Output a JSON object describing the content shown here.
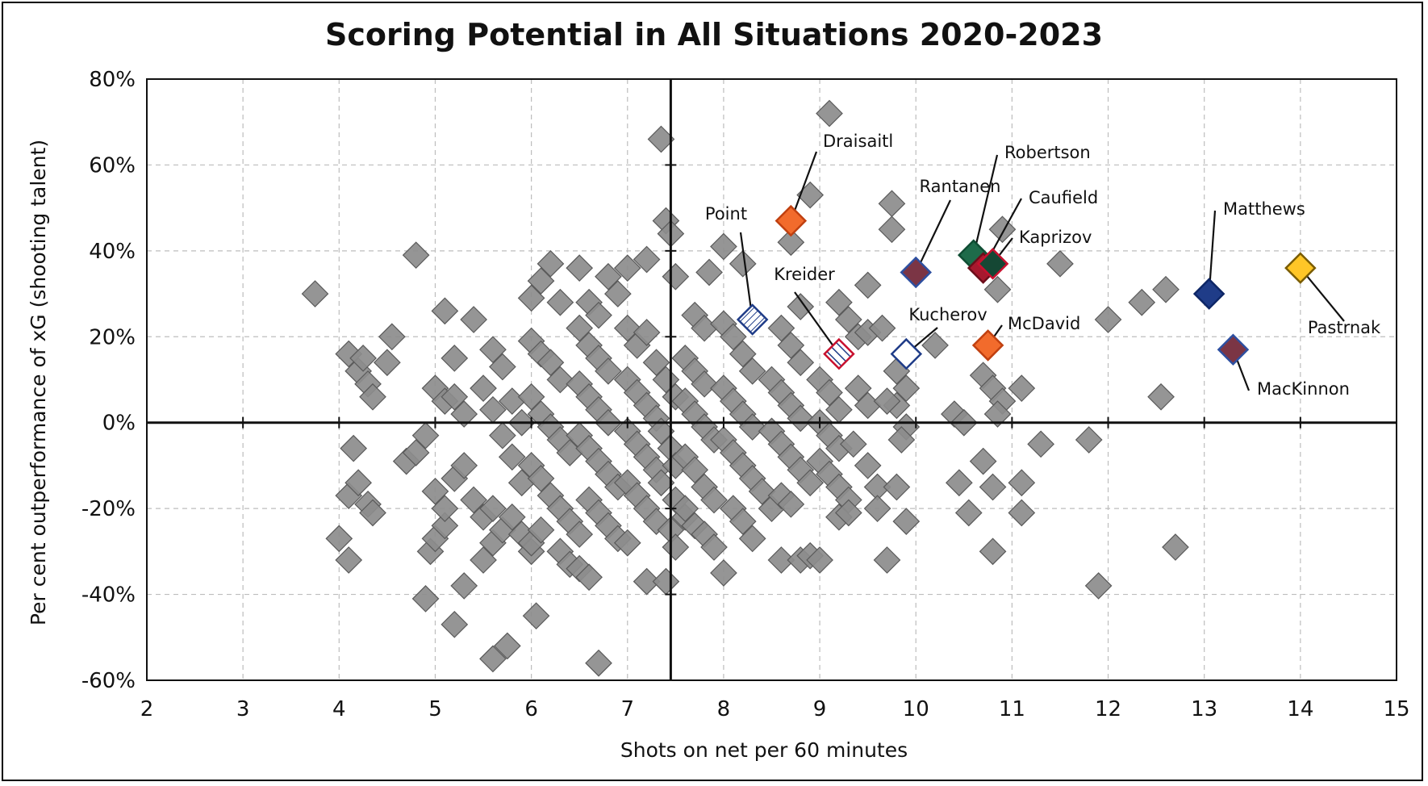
{
  "chart_data": {
    "type": "scatter",
    "title": "Scoring Potential in All Situations 2020-2023",
    "xlabel": "Shots on net per 60 minutes",
    "ylabel": "Per cent outperformance of xG (shooting talent)",
    "xlim": [
      2,
      15
    ],
    "ylim": [
      -60,
      80
    ],
    "xticks": [
      "2",
      "3",
      "4",
      "5",
      "6",
      "7",
      "8",
      "9",
      "10",
      "11",
      "12",
      "13",
      "14",
      "15"
    ],
    "yticks": [
      "80%",
      "60%",
      "40%",
      "20%",
      "0%",
      "-20%",
      "-40%",
      "-60%"
    ],
    "grid": true,
    "crosshair": {
      "x": 7.45,
      "y": 0
    },
    "colors": {
      "default_fill": "#8c8c8c",
      "default_stroke": "#5a5a5a"
    },
    "highlighted": [
      {
        "name": "Draisaitl",
        "x": 8.7,
        "y": 47,
        "fill": "#f26b2c",
        "stroke": "#c04010"
      },
      {
        "name": "Point",
        "x": 8.3,
        "y": 24,
        "fill": "#ffffff",
        "stroke": "#1f3c88",
        "pattern": "hatch"
      },
      {
        "name": "Kreider",
        "x": 9.2,
        "y": 16,
        "fill": "#ffffff",
        "stroke": "#c8102e",
        "pattern": "stripes"
      },
      {
        "name": "Rantanen",
        "x": 10.0,
        "y": 35,
        "fill": "#7b3545",
        "stroke": "#2d4fa0"
      },
      {
        "name": "Robertson",
        "x": 10.6,
        "y": 39,
        "fill": "#1e6b4a",
        "stroke": "#0f4d33"
      },
      {
        "name": "Caufield",
        "x": 10.7,
        "y": 36,
        "fill": "#a6192e",
        "stroke": "#6b0d1a"
      },
      {
        "name": "Kaprizov",
        "x": 10.8,
        "y": 37,
        "fill": "#154734",
        "stroke": "#c8102e"
      },
      {
        "name": "Kucherov",
        "x": 9.9,
        "y": 16,
        "fill": "#ffffff",
        "stroke": "#1f3c88"
      },
      {
        "name": "McDavid",
        "x": 10.75,
        "y": 18,
        "fill": "#f26b2c",
        "stroke": "#c04010"
      },
      {
        "name": "Matthews",
        "x": 13.05,
        "y": 30,
        "fill": "#1f3c88",
        "stroke": "#0d2666"
      },
      {
        "name": "Pastrnak",
        "x": 14.0,
        "y": 36,
        "fill": "#ffc627",
        "stroke": "#7a5c00"
      },
      {
        "name": "MacKinnon",
        "x": 13.3,
        "y": 17,
        "fill": "#7b3545",
        "stroke": "#2d4fa0"
      }
    ],
    "points": [
      [
        3.75,
        30
      ],
      [
        4.8,
        39
      ],
      [
        4.1,
        16
      ],
      [
        4.2,
        12
      ],
      [
        4.3,
        9
      ],
      [
        4.35,
        6
      ],
      [
        4.5,
        14
      ],
      [
        4.55,
        20
      ],
      [
        4.25,
        15
      ],
      [
        4.15,
        -6
      ],
      [
        4.1,
        -17
      ],
      [
        4.2,
        -14
      ],
      [
        4.3,
        -19
      ],
      [
        4.35,
        -21
      ],
      [
        4.0,
        -27
      ],
      [
        4.1,
        -32
      ],
      [
        4.7,
        -9
      ],
      [
        4.8,
        -7
      ],
      [
        4.9,
        -3
      ],
      [
        4.9,
        -41
      ],
      [
        4.95,
        -30
      ],
      [
        5.0,
        -27
      ],
      [
        5.1,
        -24
      ],
      [
        5.2,
        -47
      ],
      [
        5.3,
        -38
      ],
      [
        5.1,
        26
      ],
      [
        5.2,
        15
      ],
      [
        5.4,
        24
      ],
      [
        5.0,
        8
      ],
      [
        5.1,
        5
      ],
      [
        5.2,
        6
      ],
      [
        5.3,
        2
      ],
      [
        5.0,
        -16
      ],
      [
        5.1,
        -20
      ],
      [
        5.2,
        -13
      ],
      [
        5.3,
        -10
      ],
      [
        5.4,
        -18
      ],
      [
        5.5,
        -22
      ],
      [
        5.6,
        -28
      ],
      [
        5.7,
        -25
      ],
      [
        5.5,
        -32
      ],
      [
        5.6,
        -55
      ],
      [
        5.75,
        -52
      ],
      [
        5.6,
        17
      ],
      [
        5.7,
        13
      ],
      [
        5.5,
        8
      ],
      [
        5.8,
        5
      ],
      [
        5.9,
        0
      ],
      [
        5.6,
        3
      ],
      [
        5.7,
        -3
      ],
      [
        5.8,
        -8
      ],
      [
        5.9,
        -14
      ],
      [
        5.6,
        -20
      ],
      [
        5.8,
        -22
      ],
      [
        5.9,
        -26
      ],
      [
        6.0,
        -30
      ],
      [
        6.05,
        -45
      ],
      [
        6.0,
        -28
      ],
      [
        6.1,
        -25
      ],
      [
        6.0,
        29
      ],
      [
        6.2,
        37
      ],
      [
        6.5,
        36
      ],
      [
        6.1,
        33
      ],
      [
        6.3,
        28
      ],
      [
        6.0,
        19
      ],
      [
        6.1,
        16
      ],
      [
        6.2,
        14
      ],
      [
        6.3,
        10
      ],
      [
        6.0,
        6
      ],
      [
        6.1,
        2
      ],
      [
        6.2,
        -1
      ],
      [
        6.3,
        -4
      ],
      [
        6.4,
        -7
      ],
      [
        6.0,
        -10
      ],
      [
        6.1,
        -13
      ],
      [
        6.2,
        -17
      ],
      [
        6.3,
        -20
      ],
      [
        6.4,
        -23
      ],
      [
        6.5,
        -26
      ],
      [
        6.3,
        -30
      ],
      [
        6.4,
        -33
      ],
      [
        6.5,
        -34
      ],
      [
        6.6,
        -36
      ],
      [
        6.7,
        -56
      ],
      [
        6.6,
        28
      ],
      [
        6.7,
        25
      ],
      [
        6.5,
        22
      ],
      [
        6.6,
        18
      ],
      [
        6.7,
        15
      ],
      [
        6.8,
        12
      ],
      [
        6.5,
        9
      ],
      [
        6.6,
        6
      ],
      [
        6.7,
        3
      ],
      [
        6.8,
        0
      ],
      [
        6.5,
        -3
      ],
      [
        6.6,
        -6
      ],
      [
        6.7,
        -9
      ],
      [
        6.8,
        -12
      ],
      [
        6.9,
        -15
      ],
      [
        6.6,
        -18
      ],
      [
        6.7,
        -21
      ],
      [
        6.8,
        -24
      ],
      [
        6.9,
        -27
      ],
      [
        6.8,
        34
      ],
      [
        6.9,
        30
      ],
      [
        7.0,
        36
      ],
      [
        7.2,
        38
      ],
      [
        7.0,
        22
      ],
      [
        7.1,
        18
      ],
      [
        7.2,
        21
      ],
      [
        7.0,
        10
      ],
      [
        7.1,
        7
      ],
      [
        7.2,
        4
      ],
      [
        7.3,
        1
      ],
      [
        7.0,
        -2
      ],
      [
        7.1,
        -5
      ],
      [
        7.2,
        -8
      ],
      [
        7.3,
        -11
      ],
      [
        7.0,
        -14
      ],
      [
        7.1,
        -17
      ],
      [
        7.2,
        -20
      ],
      [
        7.3,
        -23
      ],
      [
        7.0,
        -28
      ],
      [
        7.2,
        -37
      ],
      [
        7.4,
        -37
      ],
      [
        7.35,
        66
      ],
      [
        7.4,
        47
      ],
      [
        7.45,
        44
      ],
      [
        7.3,
        14
      ],
      [
        7.4,
        10
      ],
      [
        7.5,
        6
      ],
      [
        7.35,
        -2
      ],
      [
        7.45,
        -6
      ],
      [
        7.5,
        -10
      ],
      [
        7.35,
        -14
      ],
      [
        7.5,
        -18
      ],
      [
        7.45,
        -25
      ],
      [
        7.5,
        -29
      ],
      [
        7.6,
        -22
      ],
      [
        7.5,
        34
      ],
      [
        7.7,
        25
      ],
      [
        7.8,
        22
      ],
      [
        7.6,
        15
      ],
      [
        7.7,
        12
      ],
      [
        7.8,
        9
      ],
      [
        7.6,
        5
      ],
      [
        7.7,
        2
      ],
      [
        7.8,
        -1
      ],
      [
        7.9,
        -4
      ],
      [
        7.6,
        -8
      ],
      [
        7.7,
        -11
      ],
      [
        7.8,
        -15
      ],
      [
        7.9,
        -18
      ],
      [
        7.6,
        -20
      ],
      [
        7.7,
        -24
      ],
      [
        7.8,
        -26
      ],
      [
        7.9,
        -29
      ],
      [
        8.0,
        -35
      ],
      [
        8.0,
        41
      ],
      [
        7.85,
        35
      ],
      [
        8.2,
        37
      ],
      [
        8.0,
        23
      ],
      [
        8.1,
        20
      ],
      [
        8.2,
        16
      ],
      [
        8.3,
        12
      ],
      [
        8.0,
        8
      ],
      [
        8.1,
        5
      ],
      [
        8.2,
        2
      ],
      [
        8.3,
        -1
      ],
      [
        8.0,
        -4
      ],
      [
        8.1,
        -7
      ],
      [
        8.2,
        -10
      ],
      [
        8.3,
        -13
      ],
      [
        8.4,
        -16
      ],
      [
        8.1,
        -20
      ],
      [
        8.2,
        -23
      ],
      [
        8.3,
        -27
      ],
      [
        8.5,
        -20
      ],
      [
        8.6,
        -32
      ],
      [
        8.8,
        -32
      ],
      [
        8.9,
        -31
      ],
      [
        9.0,
        -32
      ],
      [
        8.7,
        42
      ],
      [
        8.9,
        53
      ],
      [
        9.1,
        72
      ],
      [
        8.8,
        27
      ],
      [
        8.6,
        22
      ],
      [
        8.7,
        18
      ],
      [
        8.8,
        14
      ],
      [
        8.5,
        10
      ],
      [
        8.6,
        7
      ],
      [
        8.7,
        4
      ],
      [
        8.8,
        1
      ],
      [
        8.5,
        -2
      ],
      [
        8.6,
        -5
      ],
      [
        8.7,
        -8
      ],
      [
        8.8,
        -11
      ],
      [
        8.9,
        -14
      ],
      [
        8.6,
        -17
      ],
      [
        8.7,
        -19
      ],
      [
        9.0,
        10
      ],
      [
        9.1,
        7
      ],
      [
        9.2,
        3
      ],
      [
        9.0,
        0
      ],
      [
        9.1,
        -3
      ],
      [
        9.2,
        -6
      ],
      [
        9.0,
        -9
      ],
      [
        9.1,
        -12
      ],
      [
        9.2,
        -15
      ],
      [
        9.3,
        -18
      ],
      [
        9.2,
        -22
      ],
      [
        9.3,
        -21
      ],
      [
        9.2,
        28
      ],
      [
        9.3,
        24
      ],
      [
        9.4,
        20
      ],
      [
        9.5,
        21
      ],
      [
        9.5,
        32
      ],
      [
        9.65,
        22
      ],
      [
        9.4,
        8
      ],
      [
        9.5,
        4
      ],
      [
        9.35,
        -5
      ],
      [
        9.5,
        -10
      ],
      [
        9.6,
        -15
      ],
      [
        9.6,
        -20
      ],
      [
        9.7,
        -32
      ],
      [
        9.75,
        51
      ],
      [
        9.75,
        45
      ],
      [
        9.8,
        12
      ],
      [
        9.9,
        8
      ],
      [
        9.8,
        4
      ],
      [
        9.7,
        5
      ],
      [
        9.9,
        -1
      ],
      [
        9.85,
        -4
      ],
      [
        9.8,
        -15
      ],
      [
        9.9,
        -23
      ],
      [
        10.2,
        18
      ],
      [
        10.4,
        2
      ],
      [
        10.5,
        0
      ],
      [
        10.45,
        -14
      ],
      [
        10.55,
        -21
      ],
      [
        10.7,
        -9
      ],
      [
        10.8,
        -15
      ],
      [
        10.7,
        11
      ],
      [
        10.8,
        8
      ],
      [
        10.9,
        5
      ],
      [
        10.85,
        2
      ],
      [
        10.8,
        -30
      ],
      [
        11.1,
        8
      ],
      [
        11.1,
        -14
      ],
      [
        11.1,
        -21
      ],
      [
        11.3,
        -5
      ],
      [
        10.9,
        45
      ],
      [
        10.85,
        31
      ],
      [
        11.5,
        37
      ],
      [
        11.8,
        -4
      ],
      [
        11.9,
        -38
      ],
      [
        12.0,
        24
      ],
      [
        12.35,
        28
      ],
      [
        12.6,
        31
      ],
      [
        12.55,
        6
      ],
      [
        12.7,
        -29
      ]
    ]
  }
}
